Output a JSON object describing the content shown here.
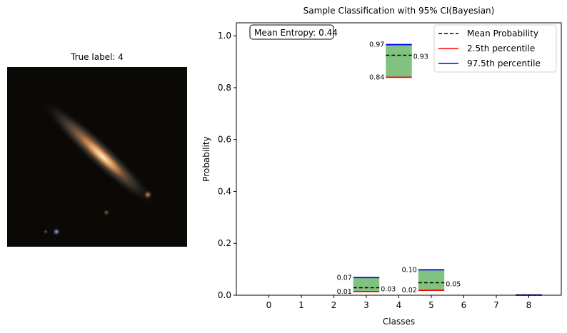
{
  "image_panel": {
    "title": "True label: 4",
    "image_description_icon": "galaxy-thumbnail"
  },
  "chart_data": {
    "type": "bar",
    "title": "Sample Classification with 95% CI(Bayesian)",
    "xlabel": "Classes",
    "ylabel": "Probability",
    "categories": [
      "0",
      "1",
      "2",
      "3",
      "4",
      "5",
      "6",
      "7",
      "8"
    ],
    "ylim": [
      0,
      1.05
    ],
    "yticks": [
      "0.0",
      "0.2",
      "0.4",
      "0.6",
      "0.8",
      "1.0"
    ],
    "intervals": [
      {
        "class": "3",
        "lower": 0.014,
        "upper": 0.068,
        "mean": 0.029,
        "lower_label": "0.01",
        "upper_label": "0.07",
        "mean_label": "0.03"
      },
      {
        "class": "4",
        "lower": 0.84,
        "upper": 0.966,
        "mean": 0.925,
        "lower_label": "0.84",
        "upper_label": "0.97",
        "mean_label": "0.93"
      },
      {
        "class": "5",
        "lower": 0.019,
        "upper": 0.098,
        "mean": 0.048,
        "lower_label": "0.02",
        "upper_label": "0.10",
        "mean_label": "0.05"
      },
      {
        "class": "8",
        "lower": 0.0,
        "upper": 0.001,
        "mean": 0.0005,
        "lower_label": "",
        "upper_label": "",
        "mean_label": ""
      }
    ],
    "annotation": "Mean Entropy: 0.44",
    "legend": {
      "placement": "top-right",
      "entries": [
        {
          "label": "Mean Probability",
          "color": "#000000",
          "style": "dashed"
        },
        {
          "label": "2.5th percentile",
          "color": "#ff0000",
          "style": "solid"
        },
        {
          "label": "97.5th percentile",
          "color": "#0000ff",
          "style": "solid"
        }
      ]
    },
    "colors": {
      "fill": "#81c281",
      "mean": "#000000",
      "lower": "#ff0000",
      "upper": "#0000ff"
    },
    "grid": false
  }
}
